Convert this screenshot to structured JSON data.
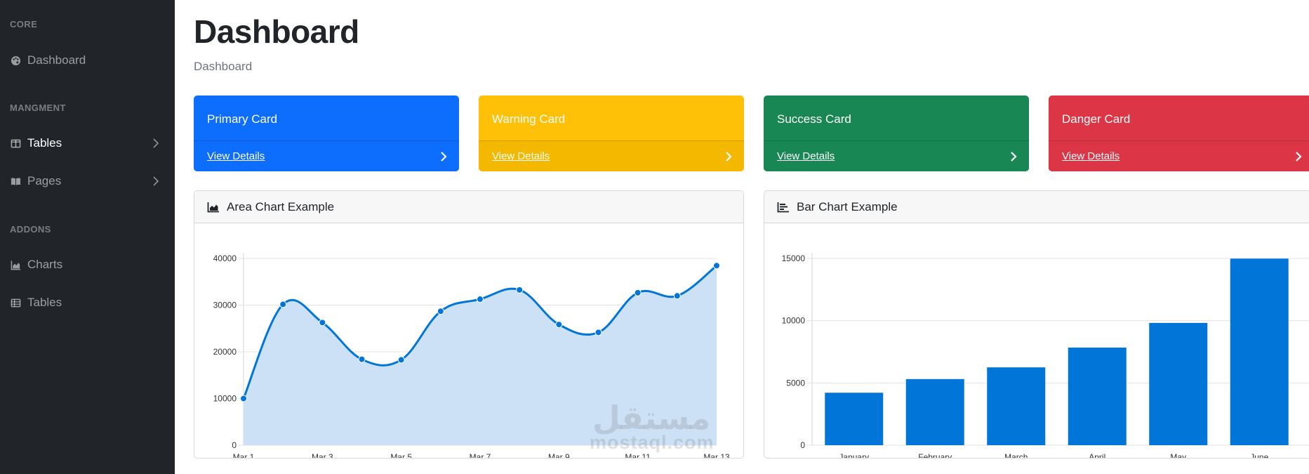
{
  "sidebar": {
    "sections": [
      {
        "heading": "CORE",
        "items": [
          {
            "label": "Dashboard",
            "icon": "palette-icon",
            "active": false,
            "chevron": false
          }
        ]
      },
      {
        "heading": "MANGMENT",
        "items": [
          {
            "label": "Tables",
            "icon": "columns-icon",
            "active": true,
            "chevron": true
          },
          {
            "label": "Pages",
            "icon": "book-open-icon",
            "active": false,
            "chevron": true
          }
        ]
      },
      {
        "heading": "ADDONS",
        "items": [
          {
            "label": "Charts",
            "icon": "chart-area-icon",
            "active": false,
            "chevron": false
          },
          {
            "label": "Tables",
            "icon": "table-icon",
            "active": false,
            "chevron": false
          }
        ]
      }
    ]
  },
  "header": {
    "title": "Dashboard",
    "breadcrumb": "Dashboard"
  },
  "cards": [
    {
      "title": "Primary Card",
      "link": "View Details",
      "color": "#0d6efd",
      "footer_color": "#0d6efd"
    },
    {
      "title": "Warning Card",
      "link": "View Details",
      "color": "#ffc107",
      "footer_color": "#f5b800"
    },
    {
      "title": "Success Card",
      "link": "View Details",
      "color": "#198754",
      "footer_color": "#198754"
    },
    {
      "title": "Danger Card",
      "link": "View Details",
      "color": "#dc3545",
      "footer_color": "#dc3545"
    }
  ],
  "area_panel": {
    "title": "Area Chart Example"
  },
  "bar_panel": {
    "title": "Bar Chart Example"
  },
  "watermark": {
    "arabic": "مستقل",
    "latin": "mostaql.com"
  },
  "chart_data": [
    {
      "type": "area",
      "title": "Area Chart Example",
      "x": [
        "Mar 1",
        "Mar 2",
        "Mar 3",
        "Mar 4",
        "Mar 5",
        "Mar 6",
        "Mar 7",
        "Mar 8",
        "Mar 9",
        "Mar 10",
        "Mar 11",
        "Mar 12",
        "Mar 13"
      ],
      "x_tick_labels": [
        "Mar 1",
        "Mar 3",
        "Mar 5",
        "Mar 7",
        "Mar 9",
        "Mar 11",
        "Mar 13"
      ],
      "values": [
        10000,
        30162,
        26263,
        18394,
        18287,
        28682,
        31274,
        33259,
        25849,
        24159,
        32651,
        31984,
        38451
      ],
      "ylim": [
        0,
        40000
      ],
      "y_ticks": [
        0,
        10000,
        20000,
        30000,
        40000
      ],
      "grid": true,
      "line_color": "#0275d8",
      "fill_color": "#cce1f6"
    },
    {
      "type": "bar",
      "title": "Bar Chart Example",
      "categories": [
        "January",
        "February",
        "March",
        "April",
        "May",
        "June"
      ],
      "values": [
        4215,
        5312,
        6251,
        7841,
        9821,
        14984
      ],
      "ylim": [
        0,
        15000
      ],
      "y_ticks": [
        0,
        5000,
        10000,
        15000
      ],
      "grid": true,
      "bar_color": "#0275d8"
    }
  ]
}
